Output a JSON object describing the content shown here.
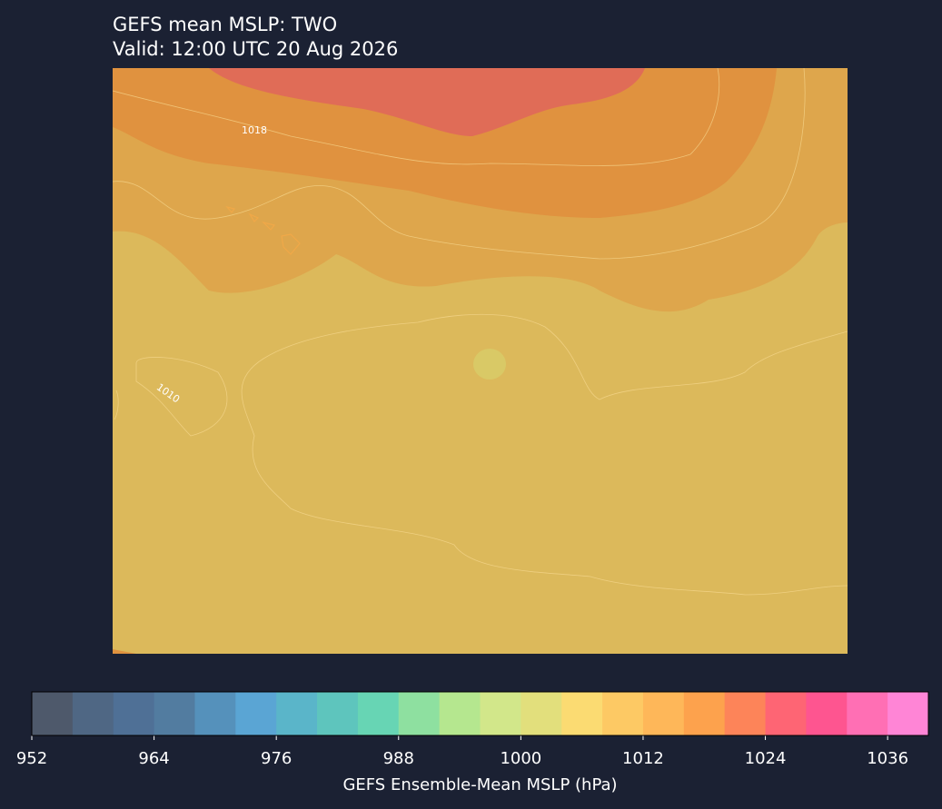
{
  "title": "GEFS mean MSLP: TWO",
  "subtitle": "Valid: 12:00 UTC 20 Aug 2026",
  "map": {
    "contour_labels": [
      "1018",
      "1010"
    ]
  },
  "colorbar": {
    "label": "GEFS Ensemble-Mean MSLP (hPa)",
    "range": [
      952,
      1040
    ],
    "ticks": [
      952,
      964,
      976,
      988,
      1000,
      1012,
      1024,
      1036
    ],
    "colors": [
      "#4e596b",
      "#4f6784",
      "#4f7096",
      "#527ca0",
      "#5591bb",
      "#5aa5d4",
      "#5ab5c9",
      "#5ec5bd",
      "#67d5b4",
      "#8ee0a0",
      "#b5e78f",
      "#d2e78a",
      "#e2df7c",
      "#fbdb72",
      "#fdc964",
      "#feb759",
      "#fda24d",
      "#fd8459",
      "#fe6574",
      "#fe5590",
      "#ff6fb4",
      "#ff85d6"
    ]
  }
}
